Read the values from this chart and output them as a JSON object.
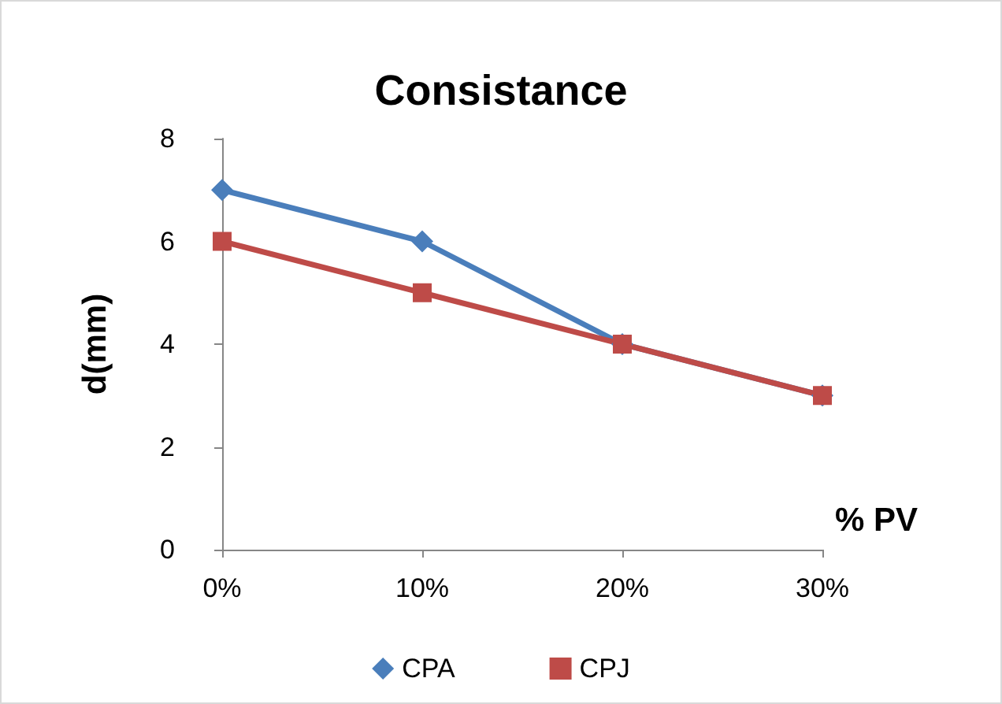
{
  "chart_data": {
    "type": "line",
    "title": "Consistance",
    "xlabel": "% PV",
    "ylabel": "d(mm)",
    "categories": [
      "0%",
      "10%",
      "20%",
      "30%"
    ],
    "series": [
      {
        "name": "CPA",
        "color": "#4a7ebb",
        "marker": "diamond",
        "values": [
          7,
          6,
          4,
          3
        ]
      },
      {
        "name": "CPJ",
        "color": "#be4b48",
        "marker": "square",
        "values": [
          6,
          5,
          4,
          3
        ]
      }
    ],
    "ylim": [
      0,
      8
    ],
    "yticks": [
      0,
      2,
      4,
      6,
      8
    ],
    "grid": false,
    "legend": "bottom",
    "line_style": "solid"
  }
}
